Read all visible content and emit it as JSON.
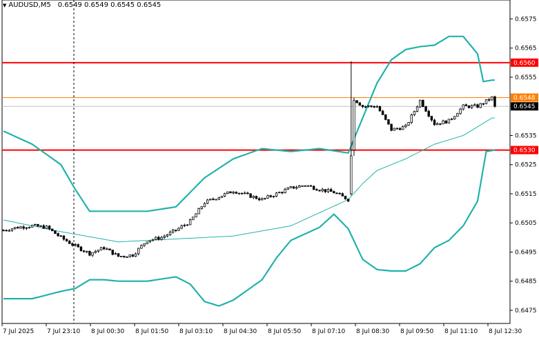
{
  "header": {
    "symbol": "AUDUSD,M5",
    "ohlc": "0.6549 0.6549 0.6545 0.6545",
    "menu_icon": "triangle-down-icon"
  },
  "colors": {
    "background": "#ffffff",
    "candle": "#000000",
    "band": "#20b2aa",
    "level": "#ff0000",
    "level_orange": "#ff7f00",
    "last_price": "#000000",
    "axis_text": "#000000"
  },
  "chart_data": {
    "type": "candlestick",
    "symbol": "AUDUSD",
    "timeframe": "M5",
    "ylim": [
      0.64705,
      0.65815
    ],
    "y_ticks": [
      "0.6575",
      "0.6565",
      "0.6555",
      "0.6545",
      "0.6535",
      "0.6525",
      "0.6515",
      "0.6505",
      "0.6495",
      "0.6485",
      "0.6475"
    ],
    "x_ticks": [
      "7 Jul 2025",
      "7 Jul 23:10",
      "8 Jul 00:30",
      "8 Jul 01:50",
      "8 Jul 03:10",
      "8 Jul 04:30",
      "8 Jul 05:50",
      "8 Jul 07:10",
      "8 Jul 08:30",
      "8 Jul 09:50",
      "8 Jul 11:10",
      "8 Jul 12:30"
    ],
    "bars_count": 172,
    "horizontal_levels": [
      {
        "label": "0.6560",
        "value": 0.656,
        "color": "#ff0000"
      },
      {
        "label": "0.6548",
        "value": 0.6548,
        "color": "#ff7f00"
      },
      {
        "label": "0.6530",
        "value": 0.653,
        "color": "#ff0000"
      }
    ],
    "last_price": {
      "label": "0.6545",
      "value": 0.6545
    },
    "vertical_marker": "7 Jul 23:10",
    "close_path": [
      [
        0,
        0.65025
      ],
      [
        5,
        0.65035
      ],
      [
        10,
        0.6504
      ],
      [
        15,
        0.65035
      ],
      [
        20,
        0.65
      ],
      [
        25,
        0.6497
      ],
      [
        30,
        0.64945
      ],
      [
        35,
        0.64965
      ],
      [
        40,
        0.64935
      ],
      [
        45,
        0.6494
      ],
      [
        50,
        0.6499
      ],
      [
        55,
        0.65
      ],
      [
        60,
        0.65025
      ],
      [
        65,
        0.65055
      ],
      [
        70,
        0.6512
      ],
      [
        75,
        0.6514
      ],
      [
        80,
        0.6516
      ],
      [
        85,
        0.65145
      ],
      [
        90,
        0.6513
      ],
      [
        95,
        0.6515
      ],
      [
        100,
        0.6517
      ],
      [
        105,
        0.6518
      ],
      [
        110,
        0.65165
      ],
      [
        115,
        0.65155
      ],
      [
        120,
        0.6513
      ],
      [
        121,
        0.6528
      ],
      [
        122,
        0.65475
      ],
      [
        125,
        0.6545
      ],
      [
        130,
        0.6545
      ],
      [
        135,
        0.6537
      ],
      [
        140,
        0.6538
      ],
      [
        145,
        0.6547
      ],
      [
        150,
        0.6539
      ],
      [
        155,
        0.654
      ],
      [
        160,
        0.6545
      ],
      [
        165,
        0.6545
      ],
      [
        170,
        0.6548
      ],
      [
        171,
        0.6545
      ]
    ],
    "series": [
      {
        "name": "",
        "type": "ma",
        "values": [
          [
            0,
            0.6506
          ],
          [
            20,
            0.6502
          ],
          [
            40,
            0.64985
          ],
          [
            60,
            0.64995
          ],
          [
            80,
            0.65005
          ],
          [
            100,
            0.6504
          ],
          [
            120,
            0.6513
          ],
          [
            125,
            0.65185
          ],
          [
            130,
            0.6523
          ],
          [
            140,
            0.6527
          ],
          [
            150,
            0.6532
          ],
          [
            160,
            0.6535
          ],
          [
            170,
            0.6541
          ]
        ]
      },
      {
        "name": "",
        "type": "upper_band",
        "values": [
          [
            0,
            0.65365
          ],
          [
            10,
            0.6532
          ],
          [
            20,
            0.6525
          ],
          [
            25,
            0.65165
          ],
          [
            30,
            0.6509
          ],
          [
            40,
            0.6509
          ],
          [
            45,
            0.6509
          ],
          [
            50,
            0.6509
          ],
          [
            60,
            0.65105
          ],
          [
            70,
            0.65205
          ],
          [
            80,
            0.6527
          ],
          [
            90,
            0.65305
          ],
          [
            100,
            0.65295
          ],
          [
            110,
            0.65305
          ],
          [
            120,
            0.6529
          ],
          [
            125,
            0.6541
          ],
          [
            130,
            0.6553
          ],
          [
            135,
            0.6561
          ],
          [
            140,
            0.65645
          ],
          [
            145,
            0.65655
          ],
          [
            150,
            0.6566
          ],
          [
            155,
            0.6569
          ],
          [
            160,
            0.6569
          ],
          [
            165,
            0.6563
          ],
          [
            167,
            0.65535
          ],
          [
            170,
            0.6554
          ]
        ]
      },
      {
        "name": "",
        "type": "lower_band",
        "values": [
          [
            0,
            0.6479
          ],
          [
            10,
            0.6479
          ],
          [
            20,
            0.64815
          ],
          [
            25,
            0.64825
          ],
          [
            30,
            0.64855
          ],
          [
            35,
            0.64855
          ],
          [
            40,
            0.6485
          ],
          [
            50,
            0.6485
          ],
          [
            60,
            0.64865
          ],
          [
            65,
            0.6484
          ],
          [
            70,
            0.6478
          ],
          [
            75,
            0.64765
          ],
          [
            80,
            0.64785
          ],
          [
            85,
            0.6482
          ],
          [
            90,
            0.64855
          ],
          [
            95,
            0.6493
          ],
          [
            100,
            0.6499
          ],
          [
            110,
            0.65035
          ],
          [
            115,
            0.6508
          ],
          [
            120,
            0.6503
          ],
          [
            125,
            0.64925
          ],
          [
            130,
            0.6489
          ],
          [
            135,
            0.64885
          ],
          [
            140,
            0.64885
          ],
          [
            145,
            0.6491
          ],
          [
            150,
            0.64965
          ],
          [
            155,
            0.6499
          ],
          [
            160,
            0.6504
          ],
          [
            165,
            0.65125
          ],
          [
            168,
            0.65295
          ],
          [
            171,
            0.653
          ]
        ]
      }
    ]
  }
}
